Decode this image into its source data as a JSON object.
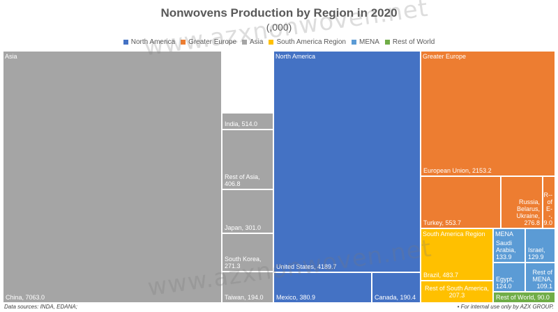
{
  "watermark_text": "www.azxnonwoven.net",
  "footer": {
    "source": "Data sources: INDA, EDANA;",
    "note": "• For internal use only by AZX GROUP."
  },
  "chart_data": {
    "type": "treemap",
    "title": "Nonwovens Production by Region in 2020",
    "subtitle": "(,000)",
    "legend_position": "top",
    "legend": [
      {
        "name": "North America",
        "color": "#4472C4"
      },
      {
        "name": "Greater Europe",
        "color": "#ED7D31"
      },
      {
        "name": "Asia",
        "color": "#A5A5A5"
      },
      {
        "name": "South America Region",
        "color": "#FFC000"
      },
      {
        "name": "MENA",
        "color": "#5B9BD5"
      },
      {
        "name": "Rest of World",
        "color": "#70AD47"
      }
    ],
    "groups": [
      {
        "name": "Asia",
        "color": "#A5A5A5",
        "items": [
          {
            "label": "China",
            "value": 7063.0
          },
          {
            "label": "India",
            "value": 514.0
          },
          {
            "label": "Rest of Asia",
            "value": 406.8
          },
          {
            "label": "Japan",
            "value": 301.0
          },
          {
            "label": "South Korea",
            "value": 271.3
          },
          {
            "label": "Taiwan",
            "value": 194.0
          }
        ]
      },
      {
        "name": "North America",
        "color": "#4472C4",
        "items": [
          {
            "label": "United States",
            "value": 4189.7
          },
          {
            "label": "Mexico",
            "value": 380.9
          },
          {
            "label": "Canada",
            "value": 190.4
          }
        ]
      },
      {
        "name": "Greater Europe",
        "color": "#ED7D31",
        "items": [
          {
            "label": "European Union",
            "value": 2153.2
          },
          {
            "label": "Turkey",
            "value": 553.7
          },
          {
            "label": "Russia, Belarus, Ukraine",
            "value": 276.8
          },
          {
            "label": "R-- of E--",
            "value": 9
          }
        ]
      },
      {
        "name": "South America Region",
        "color": "#FFC000",
        "items": [
          {
            "label": "Brazil",
            "value": 483.7
          },
          {
            "label": "Rest of South America",
            "value": 207.3
          }
        ]
      },
      {
        "name": "MENA",
        "color": "#5B9BD5",
        "items": [
          {
            "label": "Saudi Arabia",
            "value": 133.9
          },
          {
            "label": "Israel",
            "value": 129.9
          },
          {
            "label": "Egypt",
            "value": 124.0
          },
          {
            "label": "Rest of MENA",
            "value": 109.1
          }
        ]
      },
      {
        "name": "Rest of World",
        "color": "#70AD47",
        "items": [
          {
            "label": "Rest of World",
            "value": 90.0
          }
        ]
      }
    ]
  }
}
